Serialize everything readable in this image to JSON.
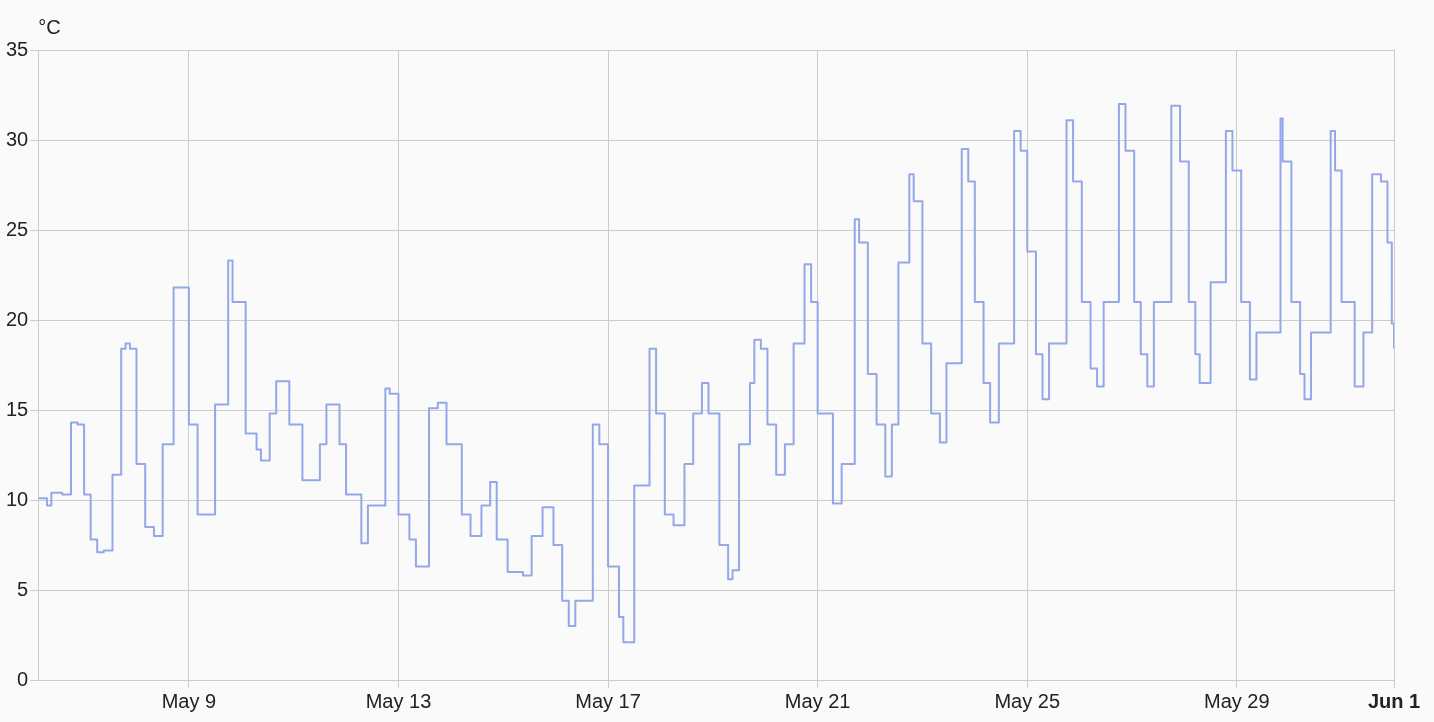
{
  "chart_data": {
    "type": "step",
    "ylabel": "°C",
    "color": "#94a8e8",
    "marker": "none",
    "grid": true,
    "legend": false,
    "x": [
      "--05-06T03:00",
      "--05-06T07:00",
      "--05-06T09:00",
      "--05-06T14:00",
      "--05-06T18:00",
      "--05-06T21:00",
      "--05-07T00:00",
      "--05-07T03:00",
      "--05-07T06:00",
      "--05-07T09:00",
      "--05-07T13:00",
      "--05-07T17:00",
      "--05-07T19:00",
      "--05-07T21:00",
      "--05-08T00:00",
      "--05-08T04:00",
      "--05-08T08:00",
      "--05-08T12:00",
      "--05-08T17:00",
      "--05-08T19:00",
      "--05-09T00:00",
      "--05-09T04:00",
      "--05-09T08:00",
      "--05-09T12:00",
      "--05-09T18:00",
      "--05-09T20:00",
      "--05-10T02:00",
      "--05-10T07:00",
      "--05-10T09:00",
      "--05-10T13:00",
      "--05-10T16:00",
      "--05-10T20:00",
      "--05-10T22:00",
      "--05-11T04:00",
      "--05-11T09:00",
      "--05-11T12:00",
      "--05-11T15:00",
      "--05-11T19:00",
      "--05-11T21:00",
      "--05-12T00:00",
      "--05-12T07:00",
      "--05-12T10:00",
      "--05-12T18:00",
      "--05-12T20:00",
      "--05-13T00:00",
      "--05-13T05:00",
      "--05-13T08:00",
      "--05-13T14:00",
      "--05-13T18:00",
      "--05-13T22:00",
      "--05-14T05:00",
      "--05-14T09:00",
      "--05-14T14:00",
      "--05-14T18:00",
      "--05-14T21:00",
      "--05-15T02:00",
      "--05-15T09:00",
      "--05-15T13:00",
      "--05-15T18:00",
      "--05-15T23:00",
      "--05-16T03:00",
      "--05-16T06:00",
      "--05-16T09:00",
      "--05-16T17:00",
      "--05-16T20:00",
      "--05-17T00:00",
      "--05-17T05:00",
      "--05-17T07:00",
      "--05-17T12:00",
      "--05-17T19:00",
      "--05-17T22:00",
      "--05-18T02:00",
      "--05-18T06:00",
      "--05-18T11:00",
      "--05-18T15:00",
      "--05-18T19:00",
      "--05-18T22:00",
      "--05-19T03:00",
      "--05-19T07:00",
      "--05-19T09:00",
      "--05-19T12:00",
      "--05-19T17:00",
      "--05-19T19:00",
      "--05-19T22:00",
      "--05-20T01:00",
      "--05-20T05:00",
      "--05-20T09:00",
      "--05-20T13:00",
      "--05-20T18:00",
      "--05-20T21:00",
      "--05-21T00:00",
      "--05-21T07:00",
      "--05-21T11:00",
      "--05-21T17:00",
      "--05-21T19:00",
      "--05-21T23:00",
      "--05-22T03:00",
      "--05-22T07:00",
      "--05-22T10:00",
      "--05-22T13:00",
      "--05-22T18:00",
      "--05-22T20:00",
      "--05-23T00:00",
      "--05-23T04:00",
      "--05-23T08:00",
      "--05-23T11:00",
      "--05-23T18:00",
      "--05-23T21:00",
      "--05-24T00:00",
      "--05-24T04:00",
      "--05-24T07:00",
      "--05-24T11:00",
      "--05-24T18:00",
      "--05-24T21:00",
      "--05-25T00:00",
      "--05-25T04:00",
      "--05-25T07:00",
      "--05-25T10:00",
      "--05-25T18:00",
      "--05-25T21:00",
      "--05-26T01:00",
      "--05-26T05:00",
      "--05-26T08:00",
      "--05-26T11:00",
      "--05-26T18:00",
      "--05-26T21:00",
      "--05-27T01:00",
      "--05-27T04:00",
      "--05-27T07:00",
      "--05-27T10:00",
      "--05-27T18:00",
      "--05-27T22:00",
      "--05-28T02:00",
      "--05-28T05:00",
      "--05-28T07:00",
      "--05-28T12:00",
      "--05-28T19:00",
      "--05-28T22:00",
      "--05-29T02:00",
      "--05-29T06:00",
      "--05-29T09:00",
      "--05-29T20:00",
      "--05-29T21:00",
      "--05-30T01:00",
      "--05-30T05:00",
      "--05-30T07:00",
      "--05-30T10:00",
      "--05-30T19:00",
      "--05-30T21:00",
      "--05-31T00:00",
      "--05-31T06:00",
      "--05-31T10:00",
      "--05-31T14:00",
      "--05-31T18:00",
      "--05-31T21:00",
      "--05-31T23:00",
      "--06-01T00:00"
    ],
    "values": [
      10.1,
      9.7,
      10.4,
      10.3,
      14.3,
      14.2,
      10.3,
      7.8,
      7.1,
      7.2,
      11.4,
      18.4,
      18.7,
      18.4,
      12.0,
      8.5,
      8.0,
      13.1,
      21.8,
      21.8,
      14.2,
      9.2,
      9.2,
      15.3,
      23.3,
      21.0,
      13.7,
      12.8,
      12.2,
      14.8,
      16.6,
      16.6,
      14.2,
      11.1,
      11.1,
      13.1,
      15.3,
      15.3,
      13.1,
      10.3,
      7.6,
      9.7,
      16.2,
      15.9,
      9.2,
      7.8,
      6.3,
      15.1,
      15.4,
      13.1,
      9.2,
      8.0,
      9.7,
      11.0,
      7.8,
      6.0,
      5.8,
      8.0,
      9.6,
      7.5,
      4.4,
      3.0,
      4.4,
      14.2,
      13.1,
      6.3,
      3.5,
      2.1,
      10.8,
      18.4,
      14.8,
      9.2,
      8.6,
      12.0,
      14.8,
      16.5,
      14.8,
      7.5,
      5.6,
      6.1,
      13.1,
      16.5,
      18.9,
      18.4,
      14.2,
      11.4,
      13.1,
      18.7,
      23.1,
      21.0,
      14.8,
      9.8,
      12.0,
      25.6,
      24.3,
      17.0,
      14.2,
      11.3,
      14.2,
      23.2,
      28.1,
      26.6,
      18.7,
      14.8,
      13.2,
      17.6,
      29.5,
      27.7,
      21.0,
      16.5,
      14.3,
      18.7,
      30.5,
      29.4,
      23.8,
      18.1,
      15.6,
      18.7,
      31.1,
      27.7,
      21.0,
      17.3,
      16.3,
      21.0,
      32.0,
      29.4,
      21.0,
      18.1,
      16.3,
      21.0,
      31.9,
      28.8,
      21.0,
      18.1,
      16.5,
      22.1,
      30.5,
      28.3,
      21.0,
      16.7,
      19.3,
      31.2,
      28.8,
      21.0,
      17.0,
      15.6,
      19.3,
      30.5,
      28.3,
      21.0,
      16.3,
      19.3,
      28.1,
      27.7,
      24.3,
      19.8,
      18.4
    ],
    "xlim": [
      "--05-06T03:00",
      "--06-01T00:00"
    ],
    "xticks": [
      {
        "value": "--05-09",
        "label": "May 9"
      },
      {
        "value": "--05-13",
        "label": "May 13"
      },
      {
        "value": "--05-17",
        "label": "May 17"
      },
      {
        "value": "--05-21",
        "label": "May 21"
      },
      {
        "value": "--05-25",
        "label": "May 25"
      },
      {
        "value": "--05-29",
        "label": "May 29"
      },
      {
        "value": "--06-01",
        "label": "Jun 1"
      }
    ],
    "ylim": [
      0,
      35
    ],
    "yticks": [
      0,
      5,
      10,
      15,
      20,
      25,
      30,
      35
    ]
  }
}
